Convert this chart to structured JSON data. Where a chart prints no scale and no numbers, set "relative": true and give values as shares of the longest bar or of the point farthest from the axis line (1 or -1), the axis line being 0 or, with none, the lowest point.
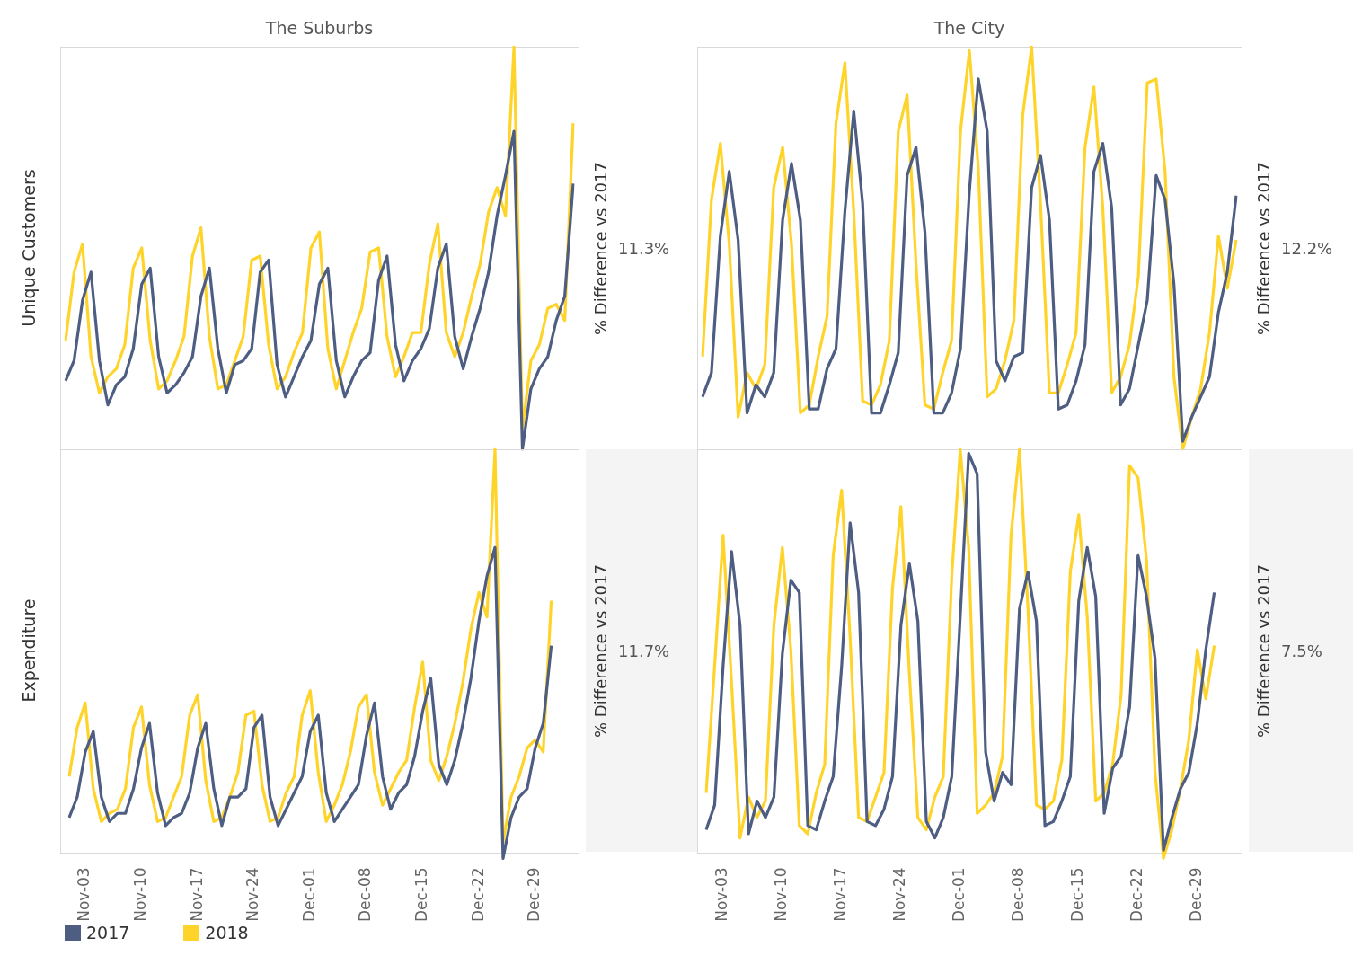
{
  "chart_data": [
    {
      "type": "line",
      "title": "The Suburbs",
      "ylabel": "Unique Customers",
      "relative": true,
      "tick_labels": false,
      "annotations": [
        "% Difference vs 2017",
        "11.3%"
      ],
      "categories": [
        null,
        null,
        null,
        null,
        null,
        null,
        null,
        null,
        null,
        null,
        null,
        null,
        null,
        null,
        null,
        null,
        null,
        null,
        null,
        null,
        null,
        null,
        null,
        null,
        null,
        null,
        null,
        null,
        null,
        null,
        null,
        null,
        null,
        null,
        null,
        null,
        null,
        null,
        null,
        null,
        null,
        null,
        null,
        null,
        null,
        null,
        null,
        null,
        null,
        null,
        null,
        null,
        null,
        null,
        null,
        null,
        null,
        null,
        null,
        null,
        null
      ],
      "series": [
        {
          "color": "#4e5d82",
          "values": [
            0.17,
            0.22,
            0.37,
            0.44,
            0.22,
            0.11,
            0.16,
            0.18,
            0.25,
            0.41,
            0.45,
            0.23,
            0.14,
            0.16,
            0.19,
            0.23,
            0.38,
            0.45,
            0.25,
            0.14,
            0.21,
            0.22,
            0.25,
            0.44,
            0.47,
            0.21,
            0.13,
            0.18,
            0.23,
            0.27,
            0.41,
            0.45,
            0.22,
            0.13,
            0.18,
            0.22,
            0.24,
            0.42,
            0.48,
            0.26,
            0.17,
            0.22,
            0.25,
            0.3,
            0.45,
            0.51,
            0.28,
            0.2,
            0.28,
            0.35,
            0.44,
            0.58,
            0.68,
            0.79,
            0,
            0.15,
            0.2,
            0.23,
            0.32,
            0.38,
            0.66
          ]
        },
        {
          "color": "#ffd42a",
          "values": [
            0.27,
            0.44,
            0.51,
            0.23,
            0.14,
            0.18,
            0.2,
            0.26,
            0.45,
            0.5,
            0.27,
            0.15,
            0.17,
            0.22,
            0.28,
            0.48,
            0.55,
            0.28,
            0.15,
            0.16,
            0.22,
            0.28,
            0.47,
            0.48,
            0.26,
            0.15,
            0.18,
            0.24,
            0.29,
            0.5,
            0.54,
            0.25,
            0.15,
            0.22,
            0.29,
            0.35,
            0.49,
            0.5,
            0.28,
            0.18,
            0.23,
            0.29,
            0.29,
            0.46,
            0.56,
            0.29,
            0.23,
            0.29,
            0.38,
            0.46,
            0.59,
            0.65,
            0.58,
            1.0,
            0.05,
            0.22,
            0.26,
            0.35,
            0.36,
            0.32,
            0.81
          ]
        }
      ]
    },
    {
      "type": "line",
      "title": "The City",
      "relative": true,
      "tick_labels": false,
      "annotations": [
        "% Difference vs 2017",
        "12.2%"
      ],
      "categories": [
        null,
        null,
        null,
        null,
        null,
        null,
        null,
        null,
        null,
        null,
        null,
        null,
        null,
        null,
        null,
        null,
        null,
        null,
        null,
        null,
        null,
        null,
        null,
        null,
        null,
        null,
        null,
        null,
        null,
        null,
        null,
        null,
        null,
        null,
        null,
        null,
        null,
        null,
        null,
        null,
        null,
        null,
        null,
        null,
        null,
        null,
        null,
        null,
        null,
        null,
        null,
        null,
        null,
        null,
        null,
        null,
        null,
        null,
        null,
        null,
        null
      ],
      "series": [
        {
          "color": "#4e5d82",
          "values": [
            0.13,
            0.19,
            0.53,
            0.69,
            0.52,
            0.09,
            0.16,
            0.13,
            0.19,
            0.57,
            0.71,
            0.57,
            0.1,
            0.1,
            0.2,
            0.25,
            0.59,
            0.84,
            0.61,
            0.09,
            0.09,
            0.16,
            0.24,
            0.68,
            0.75,
            0.54,
            0.09,
            0.09,
            0.14,
            0.25,
            0.64,
            0.92,
            0.79,
            0.22,
            0.17,
            0.23,
            0.24,
            0.65,
            0.73,
            0.57,
            0.1,
            0.11,
            0.17,
            0.26,
            0.69,
            0.76,
            0.6,
            0.11,
            0.15,
            0.26,
            0.37,
            0.68,
            0.62,
            0.41,
            0.02,
            0.08,
            0.13,
            0.18,
            0.34,
            0.44,
            0.63
          ]
        },
        {
          "color": "#ffd42a",
          "values": [
            0.23,
            0.62,
            0.76,
            0.51,
            0.08,
            0.19,
            0.15,
            0.21,
            0.65,
            0.75,
            0.51,
            0.09,
            0.11,
            0.23,
            0.33,
            0.81,
            0.96,
            0.59,
            0.12,
            0.11,
            0.16,
            0.27,
            0.79,
            0.88,
            0.46,
            0.11,
            0.1,
            0.19,
            0.27,
            0.79,
            0.99,
            0.7,
            0.13,
            0.15,
            0.22,
            0.32,
            0.83,
            1.0,
            0.61,
            0.14,
            0.14,
            0.21,
            0.29,
            0.75,
            0.9,
            0.6,
            0.14,
            0.18,
            0.26,
            0.43,
            0.91,
            0.92,
            0.69,
            0.18,
            0,
            0.08,
            0.15,
            0.29,
            0.53,
            0.4,
            0.52
          ]
        }
      ]
    },
    {
      "type": "line",
      "ylabel": "Expenditure",
      "relative": true,
      "tick_labels": "x",
      "legend": "bottom",
      "annotations": [
        "% Difference vs 2017",
        "11.7%"
      ],
      "categories": [
        null,
        null,
        "Nov-03",
        null,
        null,
        null,
        null,
        null,
        null,
        "Nov-10",
        null,
        null,
        null,
        null,
        null,
        null,
        "Nov-17",
        null,
        null,
        null,
        null,
        null,
        null,
        "Nov-24",
        null,
        null,
        null,
        null,
        null,
        null,
        "Dec-01",
        null,
        null,
        null,
        null,
        null,
        null,
        "Dec-08",
        null,
        null,
        null,
        null,
        null,
        null,
        "Dec-15",
        null,
        null,
        null,
        null,
        null,
        null,
        "Dec-22",
        null,
        null,
        null,
        null,
        null,
        null,
        "Dec-29",
        null,
        null
      ],
      "series": [
        {
          "name": "2017",
          "color": "#4e5d82",
          "values": [
            0.1,
            0.15,
            0.26,
            0.31,
            0.15,
            0.09,
            0.11,
            0.11,
            0.17,
            0.27,
            0.33,
            0.16,
            0.08,
            0.1,
            0.11,
            0.16,
            0.27,
            0.33,
            0.17,
            0.08,
            0.15,
            0.15,
            0.17,
            0.32,
            0.35,
            0.15,
            0.08,
            0.12,
            0.16,
            0.2,
            0.31,
            0.35,
            0.16,
            0.09,
            0.12,
            0.15,
            0.18,
            0.3,
            0.38,
            0.2,
            0.12,
            0.16,
            0.18,
            0.25,
            0.36,
            0.44,
            0.23,
            0.18,
            0.24,
            0.33,
            0.44,
            0.58,
            0.69,
            0.76,
            0,
            0.1,
            0.15,
            0.17,
            0.27,
            0.33,
            0.52
          ]
        },
        {
          "name": "2018",
          "color": "#ffd42a",
          "values": [
            0.2,
            0.32,
            0.38,
            0.17,
            0.09,
            0.11,
            0.12,
            0.17,
            0.32,
            0.37,
            0.18,
            0.09,
            0.1,
            0.15,
            0.2,
            0.35,
            0.4,
            0.19,
            0.09,
            0.1,
            0.15,
            0.21,
            0.35,
            0.36,
            0.18,
            0.09,
            0.1,
            0.16,
            0.2,
            0.35,
            0.41,
            0.21,
            0.09,
            0.13,
            0.18,
            0.26,
            0.37,
            0.4,
            0.21,
            0.13,
            0.17,
            0.21,
            0.24,
            0.37,
            0.48,
            0.24,
            0.19,
            0.25,
            0.33,
            0.43,
            0.56,
            0.65,
            0.59,
            1.0,
            0.04,
            0.15,
            0.2,
            0.27,
            0.29,
            0.26,
            0.63
          ]
        }
      ]
    },
    {
      "type": "line",
      "relative": true,
      "tick_labels": "x",
      "annotations": [
        "% Difference vs 2017",
        "7.5%"
      ],
      "categories": [
        null,
        null,
        "Nov-03",
        null,
        null,
        null,
        null,
        null,
        null,
        "Nov-10",
        null,
        null,
        null,
        null,
        null,
        null,
        "Nov-17",
        null,
        null,
        null,
        null,
        null,
        null,
        "Nov-24",
        null,
        null,
        null,
        null,
        null,
        null,
        "Dec-01",
        null,
        null,
        null,
        null,
        null,
        null,
        "Dec-08",
        null,
        null,
        null,
        null,
        null,
        null,
        "Dec-15",
        null,
        null,
        null,
        null,
        null,
        null,
        "Dec-22",
        null,
        null,
        null,
        null,
        null,
        null,
        "Dec-29",
        null,
        null
      ],
      "series": [
        {
          "color": "#4e5d82",
          "values": [
            0.07,
            0.13,
            0.47,
            0.75,
            0.57,
            0.06,
            0.14,
            0.1,
            0.15,
            0.5,
            0.68,
            0.65,
            0.08,
            0.07,
            0.14,
            0.2,
            0.47,
            0.82,
            0.65,
            0.09,
            0.08,
            0.12,
            0.2,
            0.57,
            0.72,
            0.58,
            0.09,
            0.05,
            0.1,
            0.2,
            0.59,
            0.99,
            0.94,
            0.26,
            0.14,
            0.21,
            0.18,
            0.61,
            0.7,
            0.58,
            0.08,
            0.09,
            0.14,
            0.2,
            0.63,
            0.76,
            0.64,
            0.11,
            0.22,
            0.25,
            0.37,
            0.74,
            0.64,
            0.49,
            0.02,
            0.1,
            0.17,
            0.21,
            0.33,
            0.51,
            0.65
          ]
        },
        {
          "color": "#ffd42a",
          "values": [
            0.16,
            0.47,
            0.79,
            0.43,
            0.05,
            0.15,
            0.1,
            0.14,
            0.57,
            0.76,
            0.51,
            0.08,
            0.06,
            0.16,
            0.23,
            0.74,
            0.9,
            0.54,
            0.1,
            0.09,
            0.15,
            0.21,
            0.66,
            0.86,
            0.45,
            0.1,
            0.07,
            0.15,
            0.2,
            0.69,
            1.0,
            0.76,
            0.11,
            0.13,
            0.16,
            0.25,
            0.79,
            1.0,
            0.61,
            0.13,
            0.12,
            0.14,
            0.24,
            0.7,
            0.84,
            0.59,
            0.14,
            0.16,
            0.23,
            0.4,
            0.96,
            0.93,
            0.73,
            0.21,
            0,
            0.07,
            0.17,
            0.29,
            0.51,
            0.39,
            0.52
          ]
        }
      ]
    }
  ]
}
